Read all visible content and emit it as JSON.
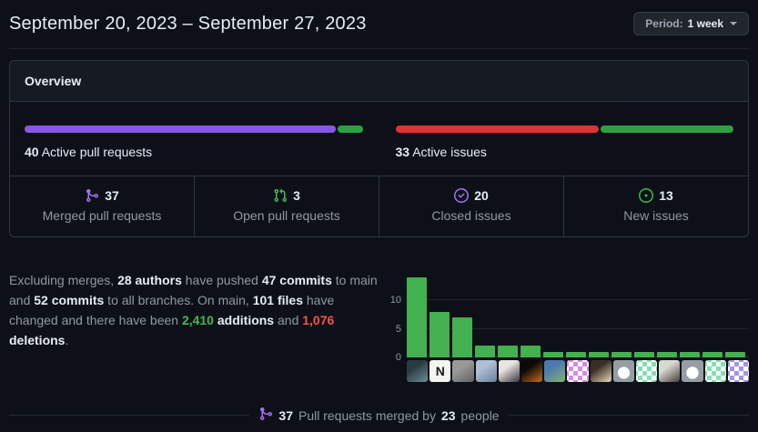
{
  "header": {
    "title": "September 20, 2023 – September 27, 2023",
    "period": {
      "prefix": "Period:",
      "value": "1 week"
    }
  },
  "overview": {
    "title": "Overview",
    "pull_requests": {
      "count": "40",
      "label": "Active pull requests",
      "segments": [
        {
          "name": "merged",
          "pct": 92.5,
          "color": "#8957e5"
        },
        {
          "name": "open",
          "pct": 7.5,
          "color": "#2ea043"
        }
      ]
    },
    "issues": {
      "count": "33",
      "label": "Active issues",
      "segments": [
        {
          "name": "closed",
          "pct": 60.6,
          "color": "#da3633"
        },
        {
          "name": "new",
          "pct": 39.4,
          "color": "#2ea043"
        }
      ]
    },
    "stats": [
      {
        "icon": "git-merge-icon",
        "icon_color": "#a371f7",
        "value": "37",
        "label": "Merged pull requests"
      },
      {
        "icon": "git-pull-request-icon",
        "icon_color": "#3fb950",
        "value": "3",
        "label": "Open pull requests"
      },
      {
        "icon": "issue-closed-icon",
        "icon_color": "#a371f7",
        "value": "20",
        "label": "Closed issues"
      },
      {
        "icon": "issue-opened-icon",
        "icon_color": "#3fb950",
        "value": "13",
        "label": "New issues"
      }
    ]
  },
  "summary": {
    "segments": [
      {
        "text": "Excluding merges, ",
        "style": "muted"
      },
      {
        "text": "28 authors",
        "style": "strong"
      },
      {
        "text": " have pushed ",
        "style": "muted"
      },
      {
        "text": "47 commits",
        "style": "strong"
      },
      {
        "text": " to main and ",
        "style": "muted"
      },
      {
        "text": "52 commits",
        "style": "strong"
      },
      {
        "text": " to all branches. On main, ",
        "style": "muted"
      },
      {
        "text": "101 files",
        "style": "strong"
      },
      {
        "text": " have changed and there have been ",
        "style": "muted"
      },
      {
        "text": "2,410",
        "style": "additions"
      },
      {
        "text": " ",
        "style": "muted"
      },
      {
        "text": "additions",
        "style": "strong"
      },
      {
        "text": " and ",
        "style": "muted"
      },
      {
        "text": "1,076",
        "style": "deletions"
      },
      {
        "text": " ",
        "style": "muted"
      },
      {
        "text": "deletions",
        "style": "strong"
      },
      {
        "text": ".",
        "style": "muted"
      }
    ]
  },
  "chart_data": {
    "type": "bar",
    "title": "",
    "xlabel": "",
    "ylabel": "",
    "values": [
      14,
      8,
      7,
      2,
      2,
      2,
      1,
      1,
      1,
      1,
      1,
      1,
      1,
      1,
      1
    ],
    "yticks": [
      0,
      5,
      10
    ],
    "ylim": [
      0,
      15
    ],
    "grid": true,
    "bar_color": "#43b14f",
    "avatars": [
      {
        "kind": "photo",
        "c1": "#2b3a42",
        "c2": "#6a8f94"
      },
      {
        "kind": "logo",
        "bg": "#f5f5f0",
        "fg": "#1a1a1a",
        "letter": "N"
      },
      {
        "kind": "photo",
        "c1": "#9a9a98",
        "c2": "#5f6365"
      },
      {
        "kind": "photo",
        "c1": "#aebfd4",
        "c2": "#6b7f98"
      },
      {
        "kind": "photo",
        "c1": "#e8e4df",
        "c2": "#3a3440"
      },
      {
        "kind": "photo",
        "c1": "#0d0a06",
        "c2": "#c96a1e"
      },
      {
        "kind": "photo",
        "c1": "#4c7ab0",
        "c2": "#86b36a"
      },
      {
        "kind": "identicon",
        "bg": "#ffffff",
        "fg": "#d78ae0"
      },
      {
        "kind": "photo",
        "c1": "#3a2f28",
        "c2": "#e8d9b8"
      },
      {
        "kind": "default",
        "bg": "#959da5",
        "fg": "#ffffff"
      },
      {
        "kind": "identicon",
        "bg": "#ffffff",
        "fg": "#84e0b0"
      },
      {
        "kind": "photo",
        "c1": "#d8d8d4",
        "c2": "#4a3c38"
      },
      {
        "kind": "default",
        "bg": "#959da5",
        "fg": "#ffffff"
      },
      {
        "kind": "identicon",
        "bg": "#ffffff",
        "fg": "#84e0b0"
      },
      {
        "kind": "identicon",
        "bg": "#ffffff",
        "fg": "#a394e8"
      }
    ]
  },
  "footer": {
    "icon": "git-merge-icon",
    "icon_color": "#a371f7",
    "count": "37",
    "text": "Pull requests merged by",
    "people_count": "23",
    "people_text": "people"
  }
}
